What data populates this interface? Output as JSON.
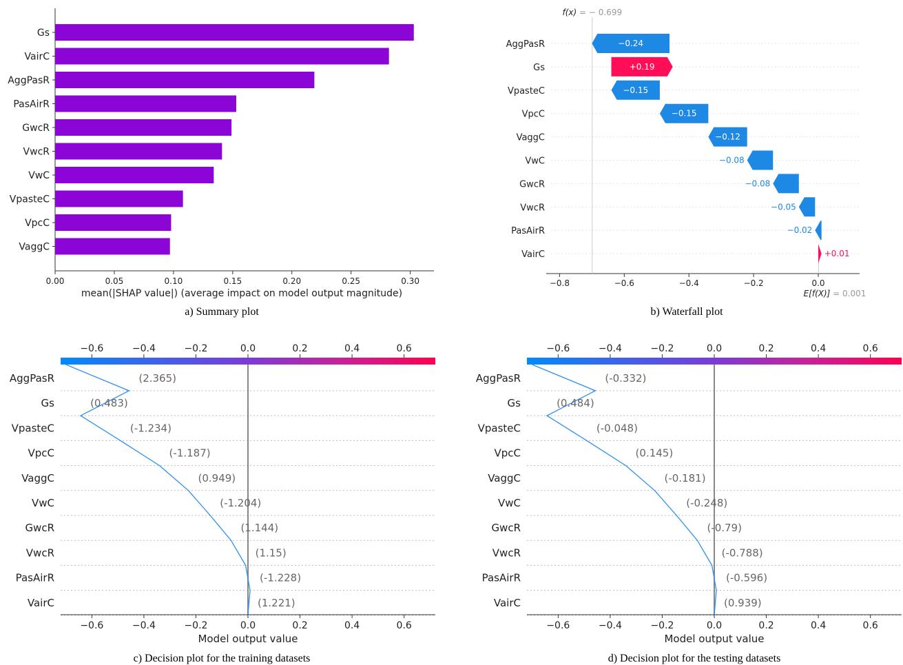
{
  "colors": {
    "purple": "#8a05d6",
    "blue": "#1e88e5",
    "red": "#ff0d57",
    "axis": "#333333",
    "grid": "#cccccc",
    "label_gray": "#999999"
  },
  "panels": {
    "a": {
      "caption": "a) Summary plot"
    },
    "b": {
      "caption": "b) Waterfall plot"
    },
    "c": {
      "caption": "c) Decision plot for the training datasets"
    },
    "d": {
      "caption": "d) Decision plot for the testing datasets"
    }
  },
  "chart_data": [
    {
      "panel": "a",
      "type": "bar",
      "orientation": "horizontal",
      "categories": [
        "Gs",
        "VairC",
        "AggPasR",
        "PasAirR",
        "GwcR",
        "VwcR",
        "VwC",
        "VpasteC",
        "VpcC",
        "VaggC"
      ],
      "values": [
        0.303,
        0.282,
        0.219,
        0.153,
        0.149,
        0.141,
        0.134,
        0.108,
        0.098,
        0.097
      ],
      "xlabel": "mean(|SHAP value|) (average impact on model output magnitude)",
      "xlim": [
        0,
        0.32
      ],
      "xticks": [
        "0.00",
        "0.05",
        "0.10",
        "0.15",
        "0.20",
        "0.25",
        "0.30"
      ],
      "grid": false
    },
    {
      "panel": "b",
      "type": "waterfall",
      "fx_label": "f(x)",
      "fx_value": "= − 0.699",
      "base_label": "E[f(X)]",
      "base_value": "= 0.001",
      "features": [
        "AggPasR",
        "Gs",
        "VpasteC",
        "VpcC",
        "VaggC",
        "VwC",
        "GwcR",
        "VwcR",
        "PasAirR",
        "VairC"
      ],
      "starts": [
        -0.46,
        -0.64,
        -0.49,
        -0.34,
        -0.22,
        -0.14,
        -0.06,
        -0.01,
        0.01,
        0.0
      ],
      "ends": [
        -0.7,
        -0.45,
        -0.64,
        -0.49,
        -0.34,
        -0.22,
        -0.14,
        -0.06,
        -0.01,
        0.01
      ],
      "labels": [
        "−0.24",
        "+0.19",
        "−0.15",
        "−0.15",
        "−0.12",
        "−0.08",
        "−0.08",
        "−0.05",
        "−0.02",
        "+0.01"
      ],
      "xlim": [
        -0.85,
        0.05
      ],
      "xticks": [
        "−0.8",
        "−0.6",
        "−0.4",
        "−0.2",
        "0.0"
      ]
    },
    {
      "panel": "c",
      "type": "line",
      "features": [
        "AggPasR",
        "Gs",
        "VpasteC",
        "VpcC",
        "VaggC",
        "VwC",
        "GwcR",
        "VwcR",
        "PasAirR",
        "VairC"
      ],
      "feature_values": [
        "(2.365)",
        "(0.483)",
        "(-1.234)",
        "(-1.187)",
        "(0.949)",
        "(-1.204)",
        "(1.144)",
        "(1.15)",
        "(-1.228)",
        "(1.221)"
      ],
      "path": [
        -0.7,
        -0.457,
        -0.643,
        -0.49,
        -0.34,
        -0.229,
        -0.145,
        -0.065,
        -0.009,
        0.008,
        0.0
      ],
      "xlabel": "Model output value",
      "xlim": [
        -0.72,
        0.72
      ],
      "xticks": [
        "−0.6",
        "−0.4",
        "−0.2",
        "0.0",
        "0.2",
        "0.4",
        "0.6"
      ],
      "colorbar_ticks": [
        "−0.6",
        "−0.4",
        "−0.2",
        "0.0",
        "0.2",
        "0.4",
        "0.6"
      ]
    },
    {
      "panel": "d",
      "type": "line",
      "features": [
        "AggPasR",
        "Gs",
        "VpasteC",
        "VpcC",
        "VaggC",
        "VwC",
        "GwcR",
        "VwcR",
        "PasAirR",
        "VairC"
      ],
      "feature_values": [
        "(-0.332)",
        "(0.484)",
        "(-0.048)",
        "(0.145)",
        "(-0.181)",
        "(-0.248)",
        "(-0.79)",
        "(-0.788)",
        "(-0.596)",
        "(0.939)"
      ],
      "path": [
        -0.7,
        -0.457,
        -0.643,
        -0.49,
        -0.34,
        -0.229,
        -0.145,
        -0.065,
        -0.009,
        0.008,
        0.0
      ],
      "xlabel": "Model output value",
      "xlim": [
        -0.72,
        0.72
      ],
      "xticks": [
        "−0.6",
        "−0.4",
        "−0.2",
        "0.0",
        "0.2",
        "0.4",
        "0.6"
      ],
      "colorbar_ticks": [
        "−0.6",
        "−0.4",
        "−0.2",
        "0.0",
        "0.2",
        "0.4",
        "0.6"
      ]
    }
  ]
}
